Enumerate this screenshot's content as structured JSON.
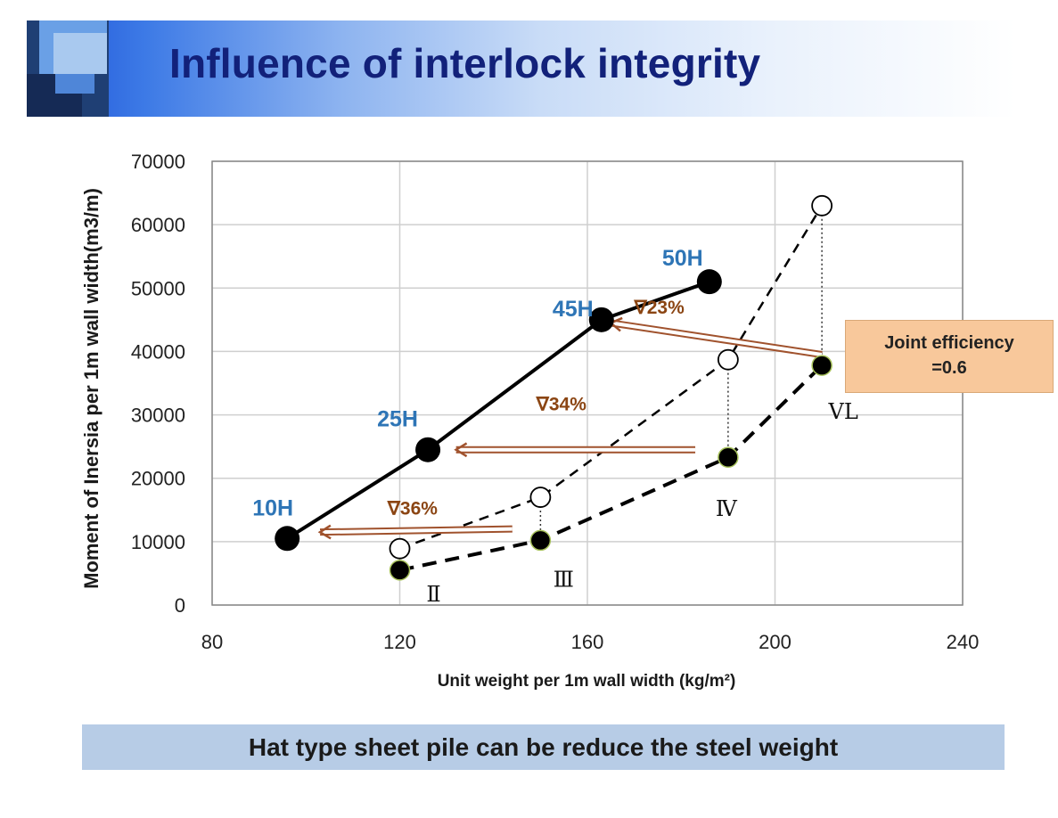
{
  "slide": {
    "title": "Influence of interlock integrity",
    "footer": "Hat type sheet pile can be reduce the steel weight",
    "joint_efficiency_line1": "Joint efficiency",
    "joint_efficiency_line2": "=0.6"
  },
  "colors": {
    "title": "#12217a",
    "hat_label": "#2e75b6",
    "percent": "#8b4513",
    "arrow": "#a0522d",
    "joint_box": "#f8c89b",
    "footer_bar": "#b7cce6"
  },
  "chart_data": {
    "type": "scatter",
    "xlabel": "Unit weight per 1m wall width (kg/m²)",
    "ylabel": "Moment of Inersia per 1m wall width(m3/m)",
    "xlim": [
      80,
      240
    ],
    "ylim": [
      0,
      70000
    ],
    "xticks": [
      80,
      120,
      160,
      200,
      240
    ],
    "yticks": [
      0,
      10000,
      20000,
      30000,
      40000,
      50000,
      60000,
      70000
    ],
    "grid": true,
    "series": [
      {
        "style": "solid-line-large-filled-markers",
        "labels": [
          "10H",
          "25H",
          "45H",
          "50H"
        ],
        "x": [
          96,
          126,
          163,
          186
        ],
        "y": [
          10500,
          24500,
          45000,
          51000
        ]
      },
      {
        "style": "dashed-line-filled-markers",
        "labels": [
          "Ⅱ",
          "Ⅲ",
          "Ⅳ",
          "ⅤL"
        ],
        "x": [
          120,
          150,
          190,
          210
        ],
        "y": [
          5500,
          10200,
          23300,
          37800
        ]
      },
      {
        "style": "dashed-line-open-markers",
        "x": [
          120,
          150,
          190,
          210
        ],
        "y": [
          8900,
          17000,
          38700,
          63000
        ]
      }
    ],
    "annotations": [
      {
        "text": "∇23%",
        "arrow_from": [
          210,
          39500
        ],
        "arrow_to": [
          165,
          44500
        ]
      },
      {
        "text": "∇34%",
        "arrow_from": [
          183,
          24500
        ],
        "arrow_to": [
          132,
          24500
        ]
      },
      {
        "text": "∇36%",
        "arrow_from": [
          144,
          12000
        ],
        "arrow_to": [
          103,
          11500
        ]
      }
    ]
  }
}
